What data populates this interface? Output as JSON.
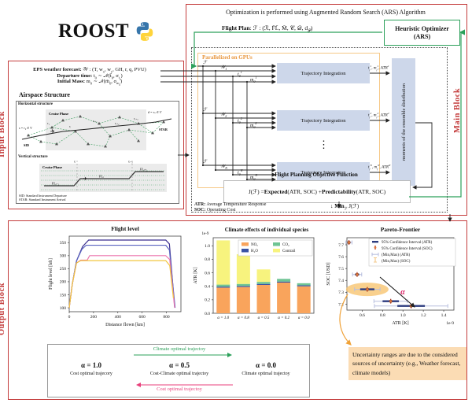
{
  "logo": {
    "title": "ROOST",
    "icon": "python-logo"
  },
  "input_block": {
    "label": "Input Block",
    "eps_math": "<b>EPS weather forecast:</b> 𝒲 : (T, w<sub>x</sub>, w<sub>y</sub>, GH, r, q, PVU)",
    "departure_math": "<b>Departure time:</b> t<sub>0</sub> ∼ 𝒩(t̄<sub>0</sub>, σ<sub>t<sub>0</sub></sub>)",
    "mass_math": "<b>Initial Mass:</b> m<sub>0</sub> ∼ 𝒩(m̄<sub>0</sub>, σ<sub>m<sub>0</sub></sub>)",
    "airspace": {
      "title": "Airspace Structure",
      "horizontal_label": "Horizontal structure",
      "vertical_label": "Vertical structure",
      "cruise_phase_h": "Cruise Phase",
      "cruise_phase_v": "Cruise Phase",
      "s_label": "s = r₀ ∈ V",
      "d_label": "d = rₙ ∈ V",
      "sid": "SID",
      "star": "STAR",
      "wp1": "r₁",
      "wp2": "rᵢ",
      "wp3": "rᵢ₊₁",
      "wp4": "rᵢ₊₂",
      "wp5": "rᵢ₊₃",
      "rt1": "rᵢ",
      "rt2": "rᵢ₊₁",
      "fl1": "FLᵢ₋₁",
      "fl2": "FLᵢ",
      "fl3": "FLᵢ₊₁",
      "footnote1": "SID: Standard Instrument Departure",
      "footnote2": "STAR: Standard Instrument Arrival"
    }
  },
  "main_block": {
    "label": "Main Block",
    "title": "Optimization is performed using Augmented Random Search (ARS) Algorithm",
    "flight_plan_math": "<b>Flight Plan</b>: ℱ : (ℛ, F̄L̄, M̄, 𝒞, 𝒟, d<sub>𝒫</sub>)",
    "optimizer_line1": "Heuristic Optimizer",
    "optimizer_line2": "(ARS)",
    "gpu_label": "Parallelized on GPUs",
    "rows": [
      {
        "f": "ℱ",
        "w": "𝒲<sub>1</sub>",
        "t": "t<sub>0</sub><sup>1</sup>",
        "m": "m<sub>0</sub><sup>1</sup>",
        "box": "Trajectory Integration",
        "out": "t<sub>f</sub><sup>1</sup>, m<sub>f</sub><sup>1</sup>, ATR<sup>1</sup>"
      },
      {
        "f": "ℱ",
        "w": "𝒲<sub>2</sub>",
        "t": "t<sub>0</sub><sup>2</sup>",
        "m": "m<sub>0</sub><sup>2</sup>",
        "box": "Trajectory Integration",
        "out": "t<sub>f</sub><sup>2</sup>, m<sub>f</sub><sup>2</sup>, ATR<sup>2</sup>"
      },
      {
        "f": "ℱ",
        "w": "𝒲<sub>N</sub>",
        "t": "t<sub>0</sub><sup>N</sup>",
        "m": "m<sub>0</sub><sup>N</sup>",
        "box": "Trajectory Integration",
        "out": "t<sub>f</sub><sup>N</sup>, m<sub>f</sub><sup>N</sup>, ATR<sup>N</sup>"
      }
    ],
    "ellipsis": "⋮",
    "moments_label": "moments of the ensemble distribution",
    "objective_title": "Flight Planning Objective Function",
    "objective_math": "J(ℱ) =  <b>Expected</b> (ATR, SOC) + <b>Predictability</b> (ATR, SOC)",
    "atr_footnote": "<b>ATR:</b> Average Temperature Response",
    "soc_footnote": "<b>SOC:</b> Operating Cost",
    "min_math": "↓ <b>Min</b><sub>ℱ</sub> J(ℱ)"
  },
  "output_block": {
    "label": "Output Block",
    "annotation": "Uncertainty ranges are due to the considered sources of uncertainty (e.g., Weather forecast, climate models)",
    "alpha_legend": {
      "top_arrow_label": "Climate optimal trajectoy",
      "bottom_arrow_label": "Cost optimal trajectoy",
      "columns": [
        {
          "alpha": "α = 1.0",
          "desc": "Cost optimal trajecory"
        },
        {
          "alpha": "α = 0.5",
          "desc": "Cost-Climate optimal trajectoy"
        },
        {
          "alpha": "α = 0.0",
          "desc": "Climate optimal trajectoy"
        }
      ]
    },
    "colors": {
      "green": "#2ca05a",
      "pink": "#e8417c",
      "red": "#c43c3c",
      "orange": "#e8973f"
    }
  },
  "chart_data": [
    {
      "id": "flight-level",
      "type": "line",
      "title": "Flight level",
      "xlabel": "Distance flown [km]",
      "ylabel": "Flight level [hft]",
      "xlim": [
        0,
        920
      ],
      "ylim": [
        85,
        375
      ],
      "xticks": [
        0,
        200,
        400,
        600,
        800
      ],
      "yticks": [
        100,
        150,
        200,
        250,
        300,
        350
      ],
      "series": [
        {
          "name": "alpha-1.0",
          "color": "#3b2f8f",
          "points": [
            [
              0,
              100
            ],
            [
              25,
              190
            ],
            [
              60,
              280
            ],
            [
              110,
              335
            ],
            [
              160,
              360
            ],
            [
              795,
              360
            ],
            [
              825,
              345
            ],
            [
              868,
              105
            ]
          ]
        },
        {
          "name": "alpha-0.8",
          "color": "#5a63c0",
          "points": [
            [
              0,
              100
            ],
            [
              25,
              190
            ],
            [
              60,
              280
            ],
            [
              105,
              325
            ],
            [
              140,
              340
            ],
            [
              795,
              340
            ],
            [
              825,
              322
            ],
            [
              872,
              100
            ]
          ]
        },
        {
          "name": "alpha-0.5",
          "color": "#ec77ad",
          "points": [
            [
              0,
              100
            ],
            [
              25,
              190
            ],
            [
              60,
              272
            ],
            [
              95,
              283
            ],
            [
              148,
              283
            ],
            [
              168,
              300
            ],
            [
              795,
              300
            ],
            [
              828,
              285
            ],
            [
              868,
              100
            ]
          ]
        },
        {
          "name": "alpha-0.0",
          "color": "#f2c53d",
          "points": [
            [
              0,
              100
            ],
            [
              25,
              190
            ],
            [
              60,
              272
            ],
            [
              95,
              281
            ],
            [
              795,
              281
            ],
            [
              828,
              262
            ],
            [
              858,
              137
            ]
          ]
        }
      ]
    },
    {
      "id": "climate-effects",
      "type": "stacked_bar",
      "title": "Climate effects of individual species",
      "offset": "1e-9",
      "ylabel": "ATR [K]",
      "ylim": [
        0,
        1.12
      ],
      "yticks": [
        0.0,
        0.2,
        0.4,
        0.6,
        0.8,
        1.0
      ],
      "categories": [
        "α = 1.0",
        "α = 0.8",
        "α = 0.5",
        "α = 0.2",
        "α = 0.0"
      ],
      "series": [
        {
          "name": "NOx",
          "label": "NOₓ",
          "color": "#f9a45c",
          "values": [
            0.38,
            0.39,
            0.42,
            0.455,
            0.4
          ]
        },
        {
          "name": "H2O",
          "label": "H₂O",
          "color": "#3a53a4",
          "values": [
            0.015,
            0.015,
            0.015,
            0.015,
            0.015
          ]
        },
        {
          "name": "CO2",
          "label": "CO₂",
          "color": "#6ec493",
          "values": [
            0.03,
            0.03,
            0.03,
            0.04,
            0.03
          ]
        },
        {
          "name": "Contrail",
          "label": "Contrail",
          "color": "#f7f37e",
          "values": [
            0.655,
            0.44,
            0.185,
            0,
            0
          ]
        }
      ]
    },
    {
      "id": "pareto",
      "type": "errorbar_scatter",
      "title": "Pareto-Frontier",
      "xlabel": "ATR [K]",
      "ylabel": "SOC [USD]",
      "x_offset": "1e-9",
      "xlim": [
        0.45,
        1.5
      ],
      "ylim": [
        7.15,
        7.76
      ],
      "xticks": [
        0.6,
        0.8,
        1.0,
        1.2,
        1.4
      ],
      "yticks": [
        7.2,
        7.3,
        7.4,
        7.5,
        7.6,
        7.7
      ],
      "points": [
        {
          "x": 0.47,
          "y": 7.72,
          "ci": 0.015,
          "minmax": 0.03
        },
        {
          "x": 0.55,
          "y": 7.45,
          "ci": 0.02,
          "minmax": 0.045
        },
        {
          "x": 0.65,
          "y": 7.325,
          "ci": 0.07,
          "minmax": 0.125,
          "highlight": true
        },
        {
          "x": 0.88,
          "y": 7.225,
          "ci": 0.08,
          "minmax": 0.165
        },
        {
          "x": 1.08,
          "y": 7.185,
          "ci": 0.135,
          "minmax": 0.36
        }
      ],
      "legend": [
        "95% Confidence Interval (ATR)",
        "95% Confidence Interval (SOC)",
        "(Min,Max) (ATR)",
        "(Min,Max) (SOC)"
      ],
      "alpha_label": "α",
      "colors": {
        "ci": "#2b3a7e",
        "minmax": "#b7bede",
        "point": "#e0793c",
        "soc": "#b03a2e",
        "highlight": "#f8c471",
        "alpha": "#d81b60"
      }
    }
  ]
}
